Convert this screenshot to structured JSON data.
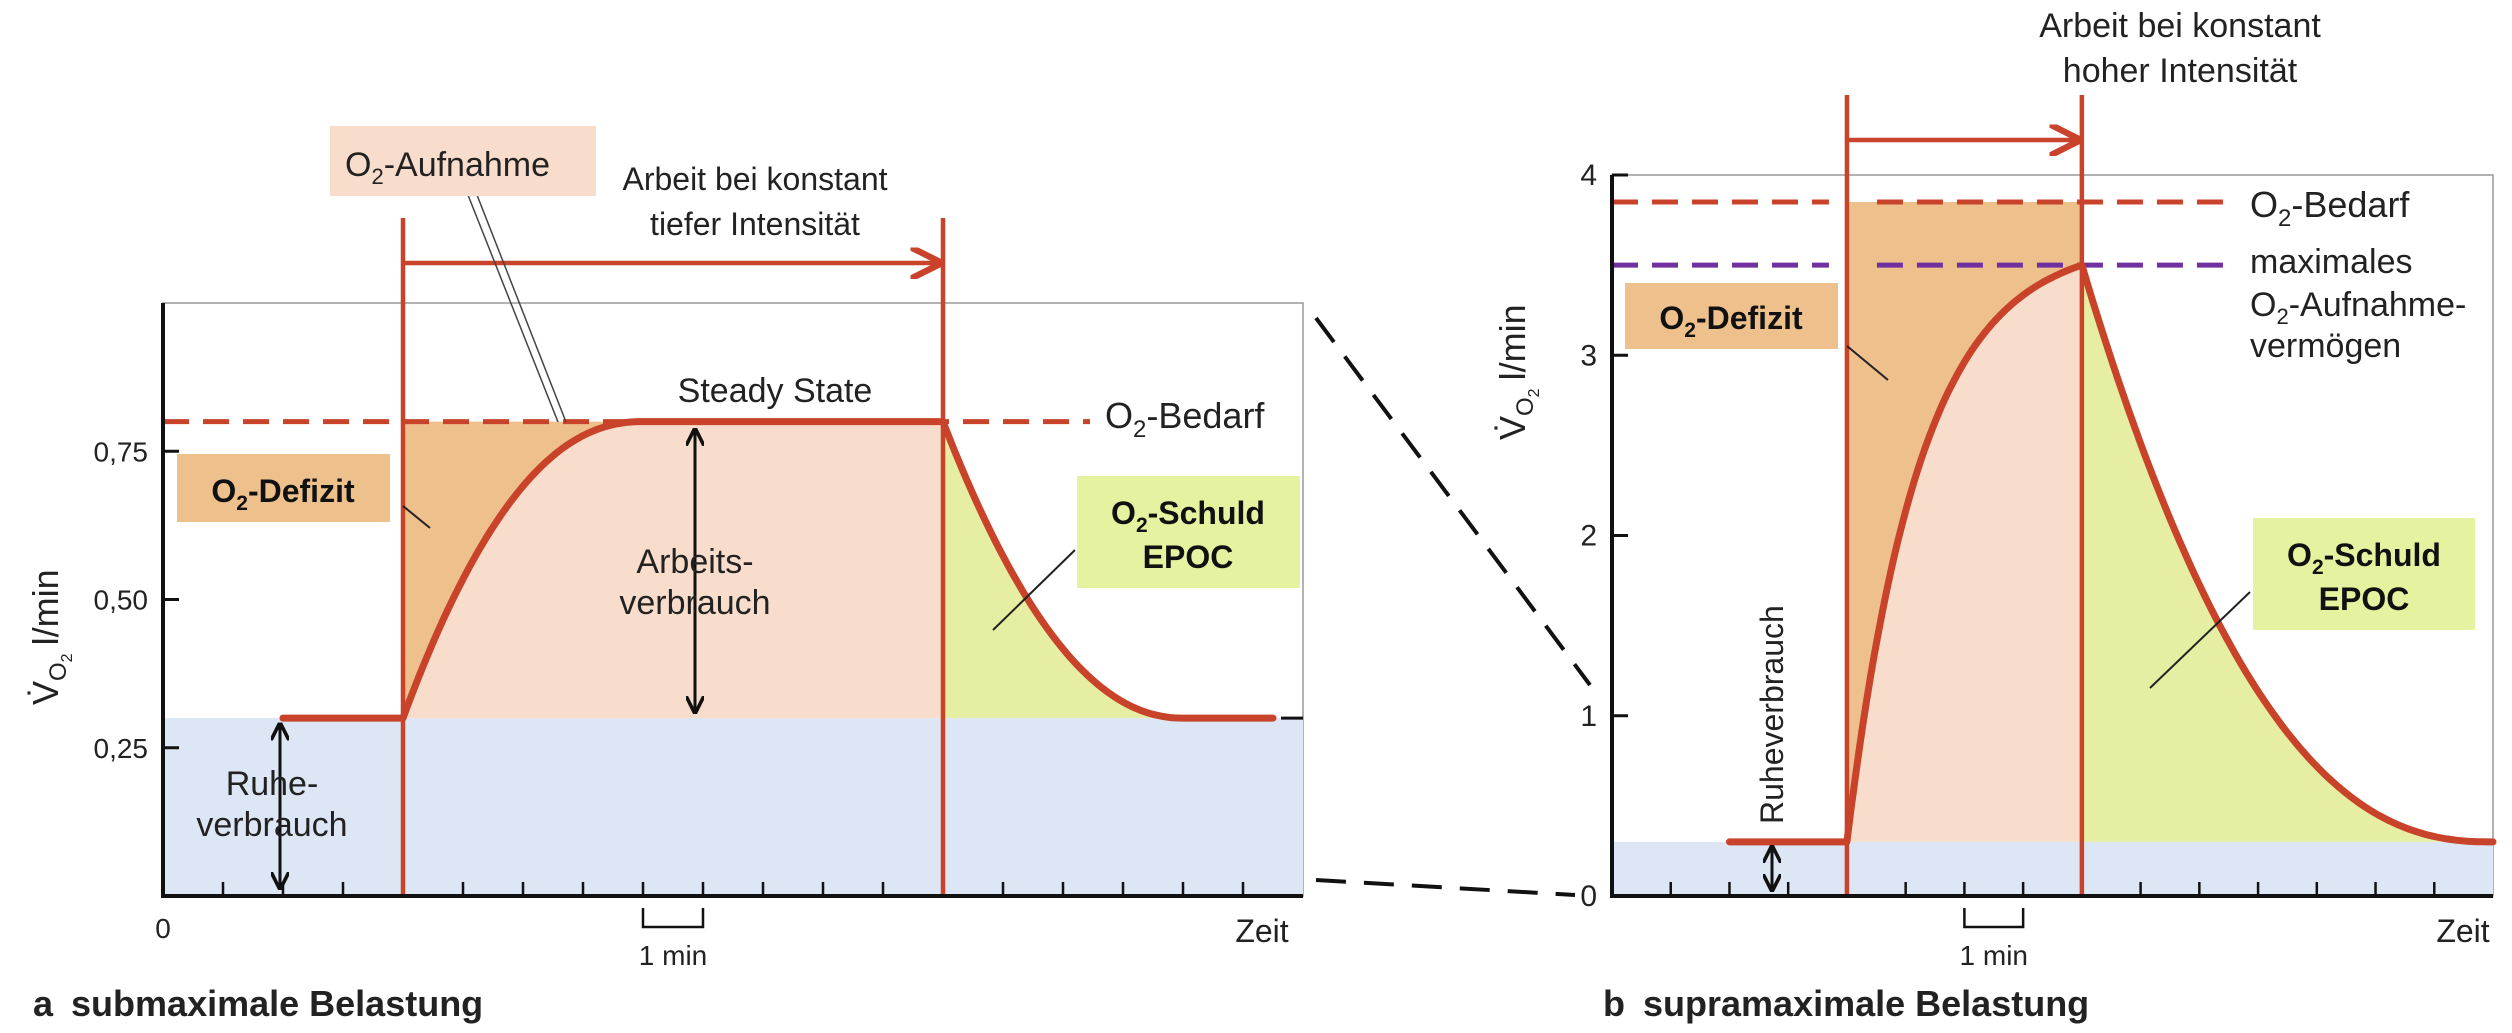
{
  "colors": {
    "line": "#c8432a",
    "resting_fill": "#dde6f5",
    "work_fill": "#f8ddcc",
    "deficit_fill": "#edc08c",
    "epoc_fill": "#e5eea3",
    "vo2max_line": "#7030a0",
    "deficit_label_bg": "#edc08c",
    "epoc_label_bg": "#e5f2a0",
    "uptake_label_bg": "#f8ddcc"
  },
  "chart_data": [
    {
      "type": "area",
      "caption_letter": "a",
      "caption": "submaximale Belastung",
      "ylabel_symbol": "V̇",
      "ylabel_sub": "O",
      "ylabel_sub2": "2",
      "ylabel_unit": "l/min",
      "xlabel": "Zeit",
      "x_origin_label": "0",
      "yticks": [
        {
          "value": 0.25,
          "label": "0,25"
        },
        {
          "value": 0.5,
          "label": "0,50"
        },
        {
          "value": 0.75,
          "label": "0,75"
        }
      ],
      "ylim": [
        0,
        1.0
      ],
      "x_unit_label": "1 min",
      "x_unit_length": 1,
      "xlim": [
        0,
        19
      ],
      "rest_value": 0.3,
      "demand_value": 0.8,
      "work_start": 4,
      "work_end": 13,
      "plateau_start": 8,
      "recovery_end": 17,
      "curve_start": 2,
      "curve_end": 18.5,
      "labels": {
        "uptake_prefix": "O",
        "uptake_sub": "2",
        "uptake_suffix": "-Aufnahme",
        "interval_line1": "Arbeit bei konstant",
        "interval_line2": "tiefer Intensität",
        "steady_state": "Steady State",
        "demand_prefix": "O",
        "demand_sub": "2",
        "demand_suffix": "-Bedarf",
        "deficit_prefix": "O",
        "deficit_sub": "2",
        "deficit_suffix": "-Defizit",
        "epoc_prefix": "O",
        "epoc_sub": "2",
        "epoc_suffix": "-Schuld",
        "epoc_line2": "EPOC",
        "work_line1": "Arbeits-",
        "work_line2": "verbrauch",
        "rest_line1": "Ruhe-",
        "rest_line2": "verbrauch"
      }
    },
    {
      "type": "area",
      "caption_letter": "b",
      "caption": "supramaximale Belastung",
      "ylabel_symbol": "V̇",
      "ylabel_sub": "O",
      "ylabel_sub2": "2",
      "ylabel_unit": "l/min",
      "xlabel": "Zeit",
      "yticks": [
        {
          "value": 0,
          "label": "0"
        },
        {
          "value": 1,
          "label": "1"
        },
        {
          "value": 2,
          "label": "2"
        },
        {
          "value": 3,
          "label": "3"
        },
        {
          "value": 4,
          "label": "4"
        }
      ],
      "ylim": [
        0,
        4
      ],
      "x_unit_label": "1 min",
      "x_unit_length": 1,
      "xlim": [
        0,
        15
      ],
      "rest_value": 0.3,
      "demand_value": 3.85,
      "vo2max_value": 3.5,
      "work_start": 4,
      "work_end": 8,
      "curve_start": 2,
      "curve_end": 15,
      "labels": {
        "interval_line1": "Arbeit bei konstant",
        "interval_line2": "hoher Intensität",
        "demand_prefix": "O",
        "demand_sub": "2",
        "demand_suffix": "-Bedarf",
        "vo2max_line1": "maximales",
        "vo2max_line2_prefix": "O",
        "vo2max_line2_sub": "2",
        "vo2max_line2_suffix": "-Aufnahme-",
        "vo2max_line3": "vermögen",
        "deficit_prefix": "O",
        "deficit_sub": "2",
        "deficit_suffix": "-Defizit",
        "epoc_prefix": "O",
        "epoc_sub": "2",
        "epoc_suffix": "-Schuld",
        "epoc_line2": "EPOC",
        "rest_label": "Ruheverbrauch"
      }
    }
  ]
}
